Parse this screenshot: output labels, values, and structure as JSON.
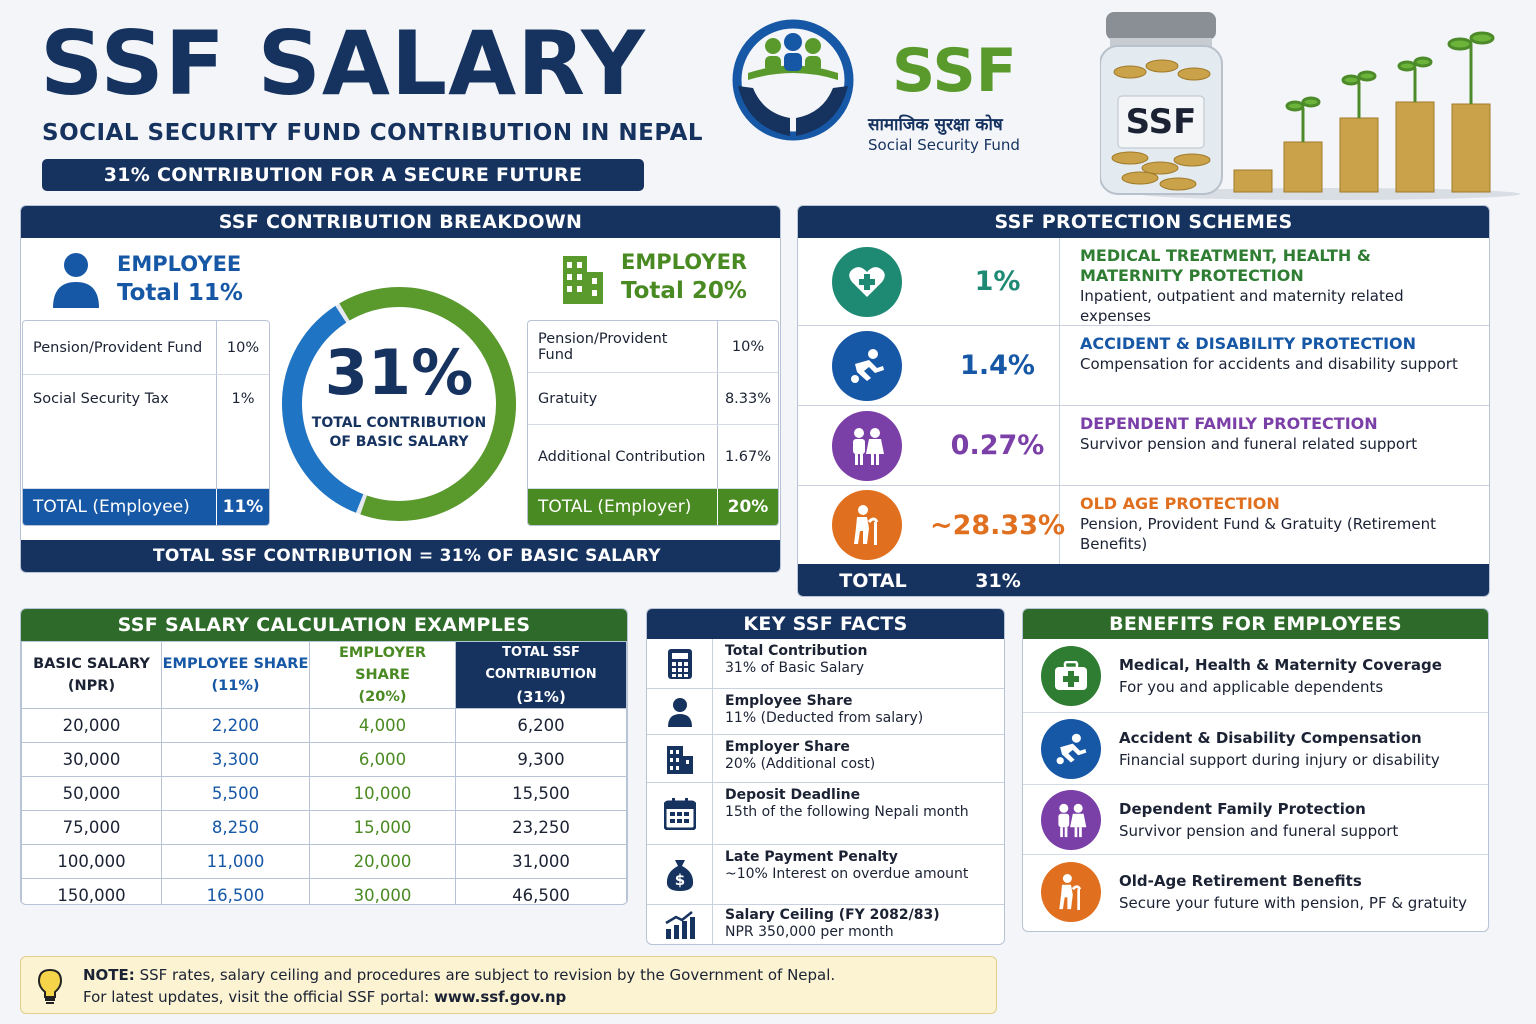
{
  "header": {
    "title": "SSF SALARY",
    "subtitle": "SOCIAL SECURITY FUND CONTRIBUTION IN NEPAL",
    "tagline": "31% CONTRIBUTION FOR A SECURE FUTURE"
  },
  "logo": {
    "name": "SSF",
    "name_nepali": "सामाजिक सुरक्षा कोष",
    "name_english": "Social Security Fund",
    "jar_label": "SSF"
  },
  "breakdown": {
    "heading": "SSF CONTRIBUTION BREAKDOWN",
    "employee": {
      "label": "EMPLOYEE",
      "total": "Total 11%",
      "rows": [
        {
          "item": "Pension/Provident Fund",
          "pct": "10%"
        },
        {
          "item": "Social Security Tax",
          "pct": "1%"
        }
      ],
      "total_label": "TOTAL (Employee)",
      "total_pct": "11%"
    },
    "employer": {
      "label": "EMPLOYER",
      "total": "Total 20%",
      "rows": [
        {
          "item": "Pension/Provident Fund",
          "pct": "10%"
        },
        {
          "item": "Gratuity",
          "pct": "8.33%"
        },
        {
          "item": "Additional Contribution",
          "pct": "1.67%"
        }
      ],
      "total_label": "TOTAL (Employer)",
      "total_pct": "20%"
    },
    "donut": {
      "value": "31%",
      "caption_line1": "TOTAL CONTRIBUTION",
      "caption_line2": "OF BASIC SALARY",
      "employee_share": 11,
      "employer_share": 20
    },
    "footer": "TOTAL SSF CONTRIBUTION = 31% OF BASIC SALARY"
  },
  "protection": {
    "heading": "SSF PROTECTION SCHEMES",
    "schemes": [
      {
        "pct": "1%",
        "title": "MEDICAL TREATMENT, HEALTH & MATERNITY PROTECTION",
        "desc": "Inpatient, outpatient and maternity related expenses",
        "icon": "heart-plus-icon",
        "color": "#1f8a74"
      },
      {
        "pct": "1.4%",
        "title": "ACCIDENT & DISABILITY PROTECTION",
        "desc": "Compensation for accidents and disability support",
        "icon": "accident-icon",
        "color": "#1657a6"
      },
      {
        "pct": "0.27%",
        "title": "DEPENDENT FAMILY PROTECTION",
        "desc": "Survivor pension and funeral related support",
        "icon": "family-icon",
        "color": "#7b3fa8"
      },
      {
        "pct": "~28.33%",
        "title": "OLD AGE PROTECTION",
        "desc": "Pension, Provident Fund & Gratuity (Retirement Benefits)",
        "icon": "elderly-icon",
        "color": "#e0701f"
      }
    ],
    "total_label": "TOTAL",
    "total_pct": "31%"
  },
  "examples": {
    "heading": "SSF SALARY CALCULATION EXAMPLES",
    "columns": [
      {
        "line1": "BASIC SALARY",
        "line2": "(NPR)"
      },
      {
        "line1": "EMPLOYEE SHARE",
        "line2": "(11%)"
      },
      {
        "line1": "EMPLOYER SHARE",
        "line2": "(20%)"
      },
      {
        "line1": "TOTAL SSF CONTRIBUTION",
        "line2": "(31%)"
      }
    ],
    "rows": [
      [
        "20,000",
        "2,200",
        "4,000",
        "6,200"
      ],
      [
        "30,000",
        "3,300",
        "6,000",
        "9,300"
      ],
      [
        "50,000",
        "5,500",
        "10,000",
        "15,500"
      ],
      [
        "75,000",
        "8,250",
        "15,000",
        "23,250"
      ],
      [
        "100,000",
        "11,000",
        "20,000",
        "31,000"
      ],
      [
        "150,000",
        "16,500",
        "30,000",
        "46,500"
      ]
    ]
  },
  "facts": {
    "heading": "KEY SSF FACTS",
    "items": [
      {
        "title": "Total Contribution",
        "text": "31% of Basic Salary",
        "icon": "calculator-icon"
      },
      {
        "title": "Employee Share",
        "text": "11% (Deducted from salary)",
        "icon": "person-icon"
      },
      {
        "title": "Employer Share",
        "text": "20% (Additional cost)",
        "icon": "building-icon"
      },
      {
        "title": "Deposit Deadline",
        "text": "15th of the following Nepali month",
        "icon": "calendar-icon"
      },
      {
        "title": "Late Payment Penalty",
        "text": "~10% Interest on overdue amount",
        "icon": "money-bag-icon"
      },
      {
        "title": "Salary Ceiling (FY 2082/83)",
        "text": "NPR 350,000 per month",
        "icon": "growth-chart-icon"
      }
    ]
  },
  "benefits": {
    "heading": "BENEFITS FOR EMPLOYEES",
    "items": [
      {
        "title": "Medical, Health & Maternity Coverage",
        "text": "For you and applicable dependents",
        "icon": "medical-kit-icon",
        "color": "#2e7d32"
      },
      {
        "title": "Accident & Disability Compensation",
        "text": "Financial support during injury or disability",
        "icon": "accident-icon",
        "color": "#1657a6"
      },
      {
        "title": "Dependent Family Protection",
        "text": "Survivor pension and funeral support",
        "icon": "family-icon",
        "color": "#7b3fa8"
      },
      {
        "title": "Old-Age Retirement Benefits",
        "text": "Secure your future with pension, PF & gratuity",
        "icon": "elderly-icon",
        "color": "#e0701f"
      }
    ]
  },
  "note": {
    "label": "NOTE:",
    "line1": "SSF rates, salary ceiling and procedures are subject to revision by the Government of Nepal.",
    "line2_prefix": "For latest updates, visit the official SSF portal:",
    "url": "www.ssf.gov.np"
  }
}
